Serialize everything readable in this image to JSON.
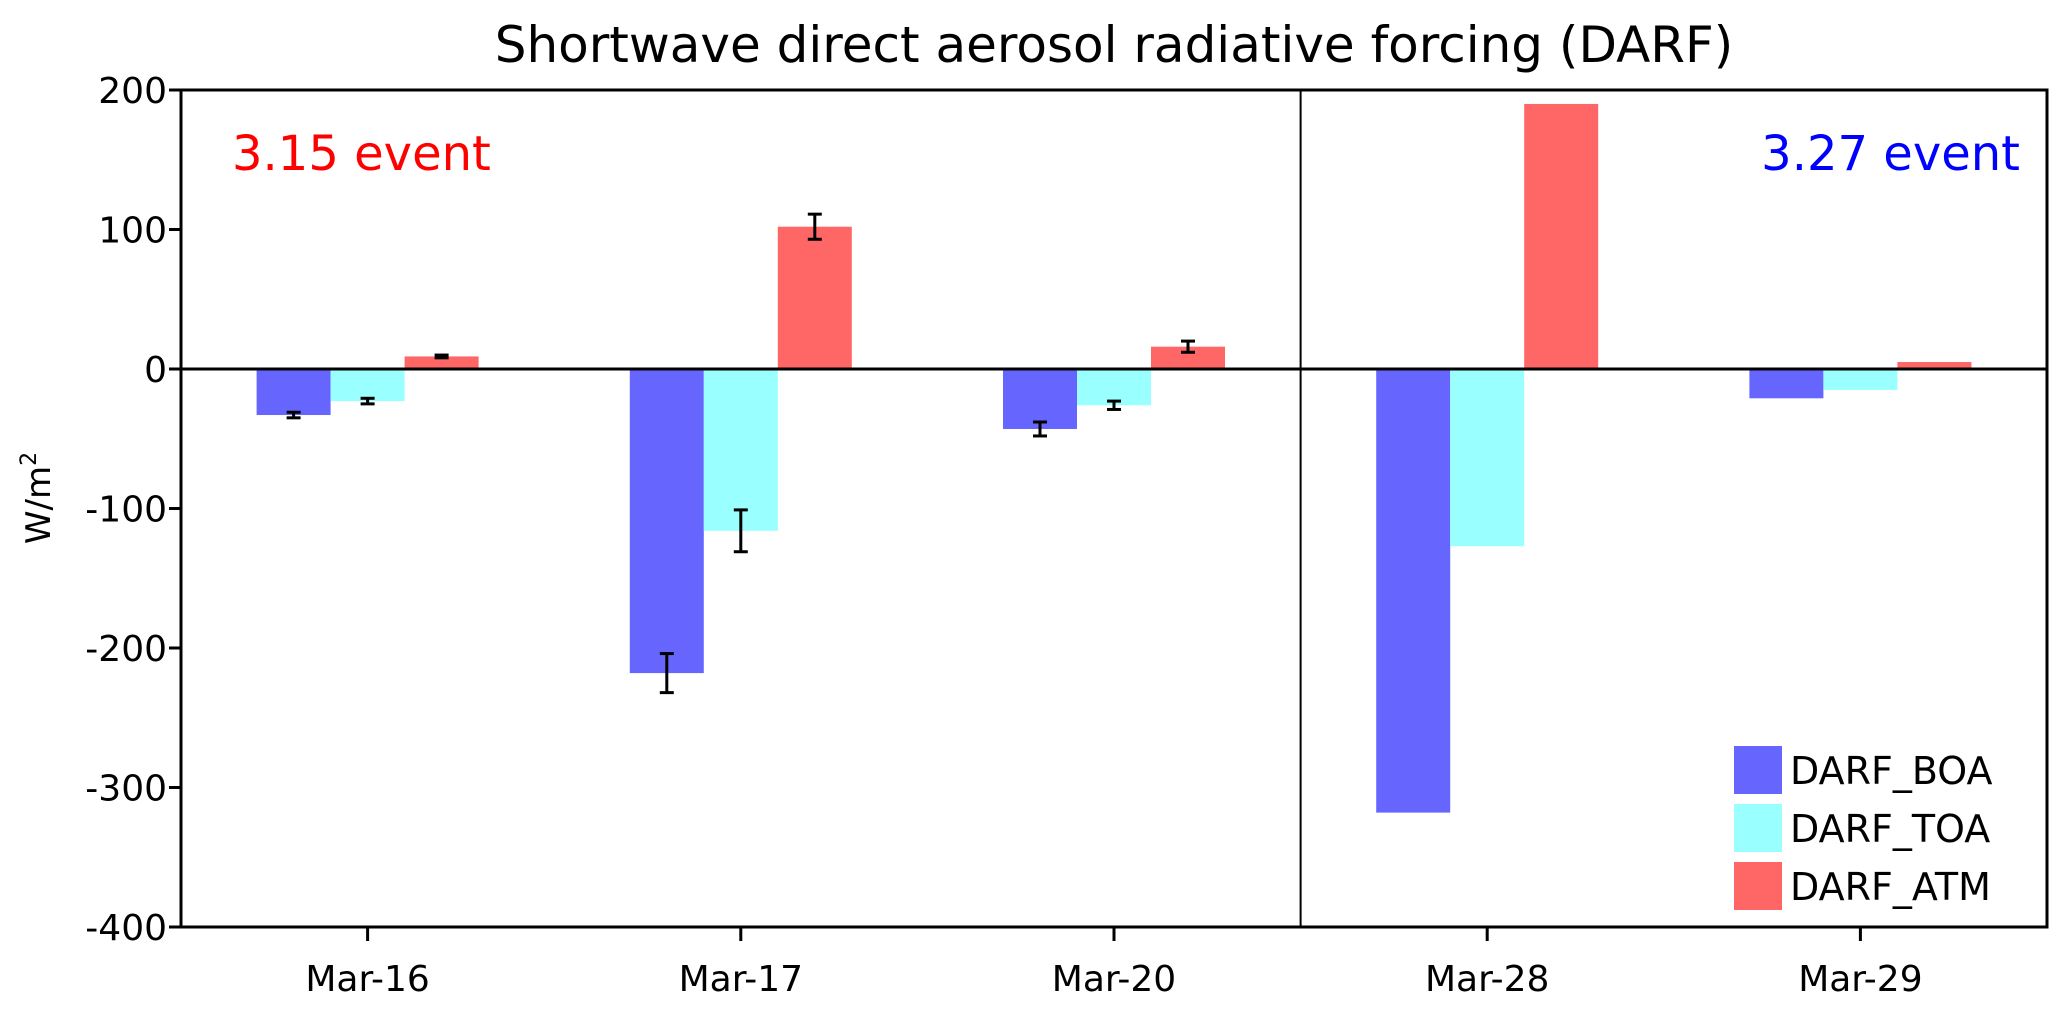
{
  "chart_data": {
    "type": "bar",
    "title": "Shortwave direct aerosol radiative forcing (DARF)",
    "xlabel": "",
    "ylabel": "W/m",
    "ylabel_superscript": "2",
    "ylim": [
      -400,
      200
    ],
    "yticks": [
      -400,
      -300,
      -200,
      -100,
      0,
      100,
      200
    ],
    "ytick_labels": [
      "-400",
      "-300",
      "-200",
      "-100",
      "0",
      "100",
      "200"
    ],
    "categories": [
      "Mar-16",
      "Mar-17",
      "Mar-20",
      "Mar-28",
      "Mar-29"
    ],
    "series": [
      {
        "name": "DARF_BOA",
        "color": "#6666ff",
        "values": [
          -33,
          -218,
          -43,
          -318,
          -21
        ],
        "errors": [
          2,
          14,
          5,
          null,
          null
        ]
      },
      {
        "name": "DARF_TOA",
        "color": "#99ffff",
        "values": [
          -23,
          -116,
          -26,
          -127,
          -15
        ],
        "errors": [
          2,
          15,
          3,
          null,
          null
        ]
      },
      {
        "name": "DARF_ATM",
        "color": "#ff6666",
        "values": [
          9,
          102,
          16,
          190,
          5
        ],
        "errors": [
          1,
          9,
          4,
          null,
          null
        ]
      }
    ],
    "annotations": [
      {
        "text": "3.15 event",
        "color": "#ff0000"
      },
      {
        "text": "3.27 event",
        "color": "#0000ff"
      }
    ],
    "divider_between": [
      "Mar-20",
      "Mar-28"
    ],
    "legend_position": "bottom-right",
    "grid": false
  }
}
